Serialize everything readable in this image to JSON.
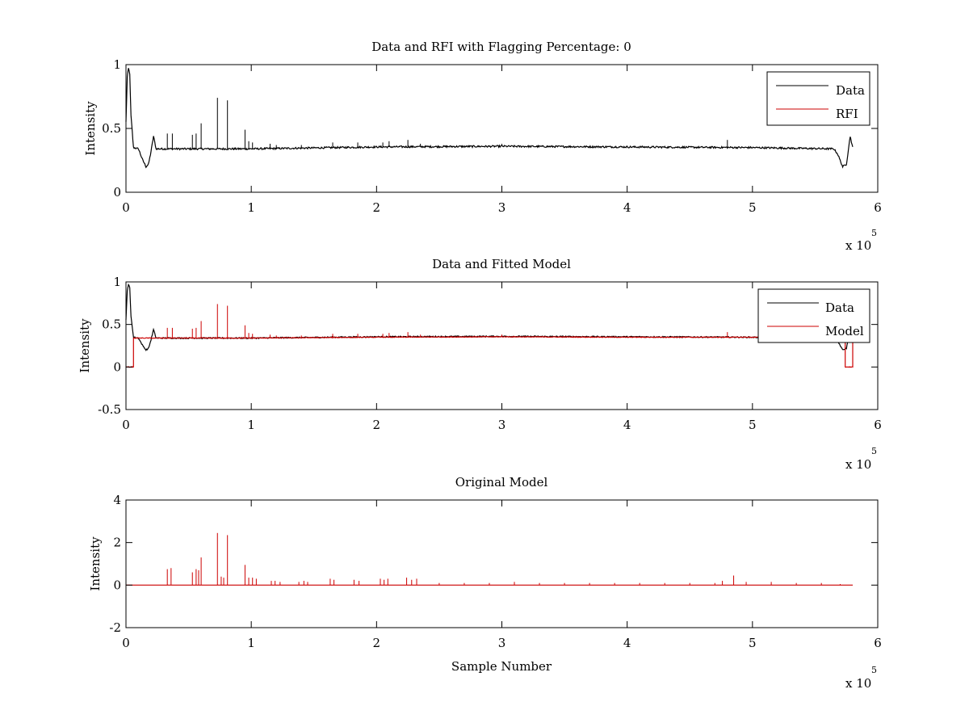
{
  "chart_data": [
    {
      "type": "line",
      "title": "Data and RFI with Flagging Percentage: 0",
      "xlabel": "",
      "ylabel": "Intensity",
      "xlim": [
        0,
        600000
      ],
      "ylim": [
        0,
        1
      ],
      "xticks": [
        0,
        1,
        2,
        3,
        4,
        5,
        6
      ],
      "yticks": [
        0,
        0.5,
        1
      ],
      "x_multiplier": "x 10",
      "x_multiplier_exp": "5",
      "legend": {
        "position": "top-right",
        "entries": [
          "Data",
          "RFI"
        ]
      },
      "series": [
        {
          "name": "Data",
          "color": "#000000",
          "baseline": [
            [
              0,
              0.55
            ],
            [
              1000,
              0.9
            ],
            [
              2000,
              0.97
            ],
            [
              3000,
              0.93
            ],
            [
              4000,
              0.6
            ],
            [
              6000,
              0.35
            ],
            [
              10000,
              0.34
            ],
            [
              13000,
              0.26
            ],
            [
              16000,
              0.2
            ],
            [
              18000,
              0.22
            ],
            [
              20000,
              0.32
            ],
            [
              22000,
              0.44
            ],
            [
              24000,
              0.34
            ],
            [
              100000,
              0.34
            ],
            [
              200000,
              0.355
            ],
            [
              300000,
              0.36
            ],
            [
              400000,
              0.355
            ],
            [
              500000,
              0.35
            ],
            [
              565000,
              0.34
            ],
            [
              568000,
              0.3
            ],
            [
              572000,
              0.2
            ],
            [
              575000,
              0.22
            ],
            [
              578000,
              0.44
            ],
            [
              580000,
              0.35
            ]
          ],
          "noise": 0.007,
          "spikes": [
            [
              33000,
              0.46
            ],
            [
              37000,
              0.46
            ],
            [
              53000,
              0.45
            ],
            [
              56000,
              0.46
            ],
            [
              60000,
              0.54
            ],
            [
              73000,
              0.74
            ],
            [
              81000,
              0.72
            ],
            [
              95000,
              0.49
            ],
            [
              98000,
              0.4
            ],
            [
              101000,
              0.39
            ],
            [
              115000,
              0.38
            ],
            [
              120000,
              0.37
            ],
            [
              140000,
              0.37
            ],
            [
              165000,
              0.39
            ],
            [
              185000,
              0.39
            ],
            [
              205000,
              0.39
            ],
            [
              210000,
              0.4
            ],
            [
              225000,
              0.41
            ],
            [
              235000,
              0.38
            ],
            [
              300000,
              0.38
            ],
            [
              480000,
              0.41
            ]
          ]
        },
        {
          "name": "RFI",
          "color": "#cc0000",
          "points": []
        }
      ]
    },
    {
      "type": "line",
      "title": "Data and Fitted Model",
      "xlabel": "",
      "ylabel": "Intensity",
      "xlim": [
        0,
        600000
      ],
      "ylim": [
        -0.5,
        1
      ],
      "xticks": [
        0,
        1,
        2,
        3,
        4,
        5,
        6
      ],
      "yticks": [
        -0.5,
        0,
        0.5,
        1
      ],
      "x_multiplier": "x 10",
      "x_multiplier_exp": "5",
      "legend": {
        "position": "top-right",
        "entries": [
          "Data",
          "Model"
        ]
      },
      "series": [
        {
          "name": "Data",
          "color": "#000000",
          "baseline": [
            [
              0,
              0.55
            ],
            [
              1000,
              0.9
            ],
            [
              2000,
              0.97
            ],
            [
              3000,
              0.93
            ],
            [
              4000,
              0.6
            ],
            [
              6000,
              0.35
            ],
            [
              10000,
              0.34
            ],
            [
              13000,
              0.26
            ],
            [
              16000,
              0.2
            ],
            [
              18000,
              0.22
            ],
            [
              20000,
              0.32
            ],
            [
              22000,
              0.44
            ],
            [
              24000,
              0.34
            ],
            [
              100000,
              0.34
            ],
            [
              200000,
              0.355
            ],
            [
              300000,
              0.36
            ],
            [
              400000,
              0.355
            ],
            [
              500000,
              0.35
            ],
            [
              565000,
              0.34
            ],
            [
              568000,
              0.3
            ],
            [
              572000,
              0.2
            ],
            [
              575000,
              0.22
            ],
            [
              578000,
              0.44
            ],
            [
              580000,
              0.35
            ]
          ],
          "noise": 0.007,
          "spikes": []
        },
        {
          "name": "Model",
          "color": "#cc0000",
          "baseline": [
            [
              0,
              0
            ],
            [
              6000,
              0
            ],
            [
              6000,
              0.34
            ],
            [
              100000,
              0.34
            ],
            [
              200000,
              0.35
            ],
            [
              300000,
              0.355
            ],
            [
              400000,
              0.35
            ],
            [
              500000,
              0.35
            ],
            [
              574000,
              0.345
            ],
            [
              574000,
              0
            ],
            [
              580000,
              0
            ],
            [
              580000,
              0.345
            ]
          ],
          "noise": 0.004,
          "spikes": [
            [
              33000,
              0.46
            ],
            [
              37000,
              0.46
            ],
            [
              53000,
              0.45
            ],
            [
              56000,
              0.46
            ],
            [
              60000,
              0.54
            ],
            [
              73000,
              0.74
            ],
            [
              81000,
              0.72
            ],
            [
              95000,
              0.49
            ],
            [
              98000,
              0.4
            ],
            [
              101000,
              0.39
            ],
            [
              115000,
              0.38
            ],
            [
              120000,
              0.37
            ],
            [
              140000,
              0.37
            ],
            [
              165000,
              0.39
            ],
            [
              185000,
              0.39
            ],
            [
              205000,
              0.39
            ],
            [
              210000,
              0.4
            ],
            [
              225000,
              0.41
            ],
            [
              235000,
              0.38
            ],
            [
              300000,
              0.38
            ],
            [
              480000,
              0.41
            ]
          ]
        }
      ]
    },
    {
      "type": "line",
      "title": "Original Model",
      "xlabel": "Sample Number",
      "ylabel": "Intensity",
      "xlim": [
        0,
        600000
      ],
      "ylim": [
        -2,
        4
      ],
      "xticks": [
        0,
        1,
        2,
        3,
        4,
        5,
        6
      ],
      "yticks": [
        -2,
        0,
        2,
        4
      ],
      "x_multiplier": "x 10",
      "x_multiplier_exp": "5",
      "series": [
        {
          "color": "#cc0000",
          "baseline": [
            [
              0,
              0
            ],
            [
              580000,
              0
            ]
          ],
          "noise": 0,
          "spikes": [
            [
              33000,
              0.75
            ],
            [
              36000,
              0.8
            ],
            [
              53000,
              0.6
            ],
            [
              56000,
              0.75
            ],
            [
              58000,
              0.7
            ],
            [
              60000,
              1.3
            ],
            [
              73000,
              2.45
            ],
            [
              76000,
              0.4
            ],
            [
              78000,
              0.35
            ],
            [
              81000,
              2.35
            ],
            [
              95000,
              0.95
            ],
            [
              98000,
              0.35
            ],
            [
              101000,
              0.35
            ],
            [
              104000,
              0.3
            ],
            [
              116000,
              0.2
            ],
            [
              119000,
              0.2
            ],
            [
              123000,
              0.15
            ],
            [
              138000,
              0.15
            ],
            [
              142000,
              0.2
            ],
            [
              145000,
              0.15
            ],
            [
              163000,
              0.3
            ],
            [
              166000,
              0.25
            ],
            [
              182000,
              0.25
            ],
            [
              186000,
              0.2
            ],
            [
              203000,
              0.3
            ],
            [
              206000,
              0.25
            ],
            [
              209000,
              0.3
            ],
            [
              224000,
              0.35
            ],
            [
              228000,
              0.25
            ],
            [
              232000,
              0.3
            ],
            [
              250000,
              0.1
            ],
            [
              270000,
              0.1
            ],
            [
              290000,
              0.1
            ],
            [
              310000,
              0.15
            ],
            [
              330000,
              0.1
            ],
            [
              350000,
              0.1
            ],
            [
              370000,
              0.1
            ],
            [
              390000,
              0.1
            ],
            [
              410000,
              0.1
            ],
            [
              430000,
              0.1
            ],
            [
              450000,
              0.1
            ],
            [
              470000,
              0.1
            ],
            [
              476000,
              0.2
            ],
            [
              485000,
              0.45
            ],
            [
              495000,
              0.15
            ],
            [
              515000,
              0.15
            ],
            [
              535000,
              0.1
            ],
            [
              555000,
              0.1
            ],
            [
              570000,
              0.05
            ]
          ]
        }
      ]
    }
  ]
}
